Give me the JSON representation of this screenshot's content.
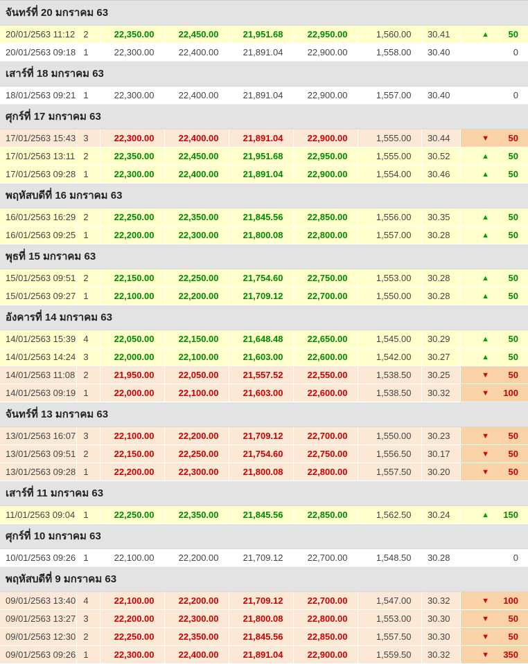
{
  "colors": {
    "up_text": "#008a00",
    "up_row_bg": "#ffffcc",
    "down_text": "#cc0000",
    "down_row_bg": "#fbe8d5",
    "down_change_bg": "#f9d2a7",
    "group_header_bg": "#e3e3e3",
    "neutral_text": "#444444"
  },
  "icons": {
    "up_arrow": "▲",
    "down_arrow": "▼"
  },
  "groups": [
    {
      "date_label": "จันทร์ที่ 20 มกราคม 63",
      "rows": [
        {
          "datetime": "20/01/2563 11:12",
          "seq": "2",
          "bullion_buy": "22,350.00",
          "bullion_sell": "22,450.00",
          "ornament_buy": "21,951.68",
          "ornament_sell": "22,950.00",
          "gold_spot": "1,560.00",
          "exchange_rate": "30.41",
          "change": "50",
          "direction": "up"
        },
        {
          "datetime": "20/01/2563 09:18",
          "seq": "1",
          "bullion_buy": "22,300.00",
          "bullion_sell": "22,400.00",
          "ornament_buy": "21,891.04",
          "ornament_sell": "22,900.00",
          "gold_spot": "1,558.00",
          "exchange_rate": "30.40",
          "change": "0",
          "direction": "none"
        }
      ]
    },
    {
      "date_label": "เสาร์ที่ 18 มกราคม 63",
      "rows": [
        {
          "datetime": "18/01/2563 09:21",
          "seq": "1",
          "bullion_buy": "22,300.00",
          "bullion_sell": "22,400.00",
          "ornament_buy": "21,891.04",
          "ornament_sell": "22,900.00",
          "gold_spot": "1,557.00",
          "exchange_rate": "30.40",
          "change": "0",
          "direction": "none"
        }
      ]
    },
    {
      "date_label": "ศุกร์ที่ 17 มกราคม 63",
      "rows": [
        {
          "datetime": "17/01/2563 15:43",
          "seq": "3",
          "bullion_buy": "22,300.00",
          "bullion_sell": "22,400.00",
          "ornament_buy": "21,891.04",
          "ornament_sell": "22,900.00",
          "gold_spot": "1,555.00",
          "exchange_rate": "30.44",
          "change": "50",
          "direction": "down"
        },
        {
          "datetime": "17/01/2563 13:11",
          "seq": "2",
          "bullion_buy": "22,350.00",
          "bullion_sell": "22,450.00",
          "ornament_buy": "21,951.68",
          "ornament_sell": "22,950.00",
          "gold_spot": "1,555.00",
          "exchange_rate": "30.52",
          "change": "50",
          "direction": "up"
        },
        {
          "datetime": "17/01/2563 09:28",
          "seq": "1",
          "bullion_buy": "22,300.00",
          "bullion_sell": "22,400.00",
          "ornament_buy": "21,891.04",
          "ornament_sell": "22,900.00",
          "gold_spot": "1,554.00",
          "exchange_rate": "30.46",
          "change": "50",
          "direction": "up"
        }
      ]
    },
    {
      "date_label": "พฤหัสบดีที่ 16 มกราคม 63",
      "rows": [
        {
          "datetime": "16/01/2563 16:29",
          "seq": "2",
          "bullion_buy": "22,250.00",
          "bullion_sell": "22,350.00",
          "ornament_buy": "21,845.56",
          "ornament_sell": "22,850.00",
          "gold_spot": "1,556.00",
          "exchange_rate": "30.35",
          "change": "50",
          "direction": "up"
        },
        {
          "datetime": "16/01/2563 09:25",
          "seq": "1",
          "bullion_buy": "22,200.00",
          "bullion_sell": "22,300.00",
          "ornament_buy": "21,800.08",
          "ornament_sell": "22,800.00",
          "gold_spot": "1,557.00",
          "exchange_rate": "30.28",
          "change": "50",
          "direction": "up"
        }
      ]
    },
    {
      "date_label": "พุธที่ 15 มกราคม 63",
      "rows": [
        {
          "datetime": "15/01/2563 09:51",
          "seq": "2",
          "bullion_buy": "22,150.00",
          "bullion_sell": "22,250.00",
          "ornament_buy": "21,754.60",
          "ornament_sell": "22,750.00",
          "gold_spot": "1,553.00",
          "exchange_rate": "30.28",
          "change": "50",
          "direction": "up"
        },
        {
          "datetime": "15/01/2563 09:27",
          "seq": "1",
          "bullion_buy": "22,100.00",
          "bullion_sell": "22,200.00",
          "ornament_buy": "21,709.12",
          "ornament_sell": "22,700.00",
          "gold_spot": "1,550.00",
          "exchange_rate": "30.28",
          "change": "50",
          "direction": "up"
        }
      ]
    },
    {
      "date_label": "อังคารที่ 14 มกราคม 63",
      "rows": [
        {
          "datetime": "14/01/2563 15:39",
          "seq": "4",
          "bullion_buy": "22,050.00",
          "bullion_sell": "22,150.00",
          "ornament_buy": "21,648.48",
          "ornament_sell": "22,650.00",
          "gold_spot": "1,545.00",
          "exchange_rate": "30.29",
          "change": "50",
          "direction": "up"
        },
        {
          "datetime": "14/01/2563 14:24",
          "seq": "3",
          "bullion_buy": "22,000.00",
          "bullion_sell": "22,100.00",
          "ornament_buy": "21,603.00",
          "ornament_sell": "22,600.00",
          "gold_spot": "1,542.00",
          "exchange_rate": "30.27",
          "change": "50",
          "direction": "up"
        },
        {
          "datetime": "14/01/2563 11:08",
          "seq": "2",
          "bullion_buy": "21,950.00",
          "bullion_sell": "22,050.00",
          "ornament_buy": "21,557.52",
          "ornament_sell": "22,550.00",
          "gold_spot": "1,538.50",
          "exchange_rate": "30.25",
          "change": "50",
          "direction": "down"
        },
        {
          "datetime": "14/01/2563 09:19",
          "seq": "1",
          "bullion_buy": "22,000.00",
          "bullion_sell": "22,100.00",
          "ornament_buy": "21,603.00",
          "ornament_sell": "22,600.00",
          "gold_spot": "1,538.50",
          "exchange_rate": "30.32",
          "change": "100",
          "direction": "down"
        }
      ]
    },
    {
      "date_label": "จันทร์ที่ 13 มกราคม 63",
      "rows": [
        {
          "datetime": "13/01/2563 16:07",
          "seq": "3",
          "bullion_buy": "22,100.00",
          "bullion_sell": "22,200.00",
          "ornament_buy": "21,709.12",
          "ornament_sell": "22,700.00",
          "gold_spot": "1,550.00",
          "exchange_rate": "30.23",
          "change": "50",
          "direction": "down"
        },
        {
          "datetime": "13/01/2563 09:51",
          "seq": "2",
          "bullion_buy": "22,150.00",
          "bullion_sell": "22,250.00",
          "ornament_buy": "21,754.60",
          "ornament_sell": "22,750.00",
          "gold_spot": "1,556.50",
          "exchange_rate": "30.17",
          "change": "50",
          "direction": "down"
        },
        {
          "datetime": "13/01/2563 09:28",
          "seq": "1",
          "bullion_buy": "22,200.00",
          "bullion_sell": "22,300.00",
          "ornament_buy": "21,800.08",
          "ornament_sell": "22,800.00",
          "gold_spot": "1,557.50",
          "exchange_rate": "30.20",
          "change": "50",
          "direction": "down"
        }
      ]
    },
    {
      "date_label": "เสาร์ที่ 11 มกราคม 63",
      "rows": [
        {
          "datetime": "11/01/2563 09:04",
          "seq": "1",
          "bullion_buy": "22,250.00",
          "bullion_sell": "22,350.00",
          "ornament_buy": "21,845.56",
          "ornament_sell": "22,850.00",
          "gold_spot": "1,562.50",
          "exchange_rate": "30.24",
          "change": "150",
          "direction": "up"
        }
      ]
    },
    {
      "date_label": "ศุกร์ที่ 10 มกราคม 63",
      "rows": [
        {
          "datetime": "10/01/2563 09:26",
          "seq": "1",
          "bullion_buy": "22,100.00",
          "bullion_sell": "22,200.00",
          "ornament_buy": "21,709.12",
          "ornament_sell": "22,700.00",
          "gold_spot": "1,548.50",
          "exchange_rate": "30.28",
          "change": "0",
          "direction": "none"
        }
      ]
    },
    {
      "date_label": "พฤหัสบดีที่ 9 มกราคม 63",
      "rows": [
        {
          "datetime": "09/01/2563 13:40",
          "seq": "4",
          "bullion_buy": "22,100.00",
          "bullion_sell": "22,200.00",
          "ornament_buy": "21,709.12",
          "ornament_sell": "22,700.00",
          "gold_spot": "1,547.00",
          "exchange_rate": "30.32",
          "change": "100",
          "direction": "down"
        },
        {
          "datetime": "09/01/2563 13:27",
          "seq": "3",
          "bullion_buy": "22,200.00",
          "bullion_sell": "22,300.00",
          "ornament_buy": "21,800.08",
          "ornament_sell": "22,800.00",
          "gold_spot": "1,553.00",
          "exchange_rate": "30.30",
          "change": "50",
          "direction": "down"
        },
        {
          "datetime": "09/01/2563 12:30",
          "seq": "2",
          "bullion_buy": "22,250.00",
          "bullion_sell": "22,350.00",
          "ornament_buy": "21,845.56",
          "ornament_sell": "22,850.00",
          "gold_spot": "1,557.50",
          "exchange_rate": "30.30",
          "change": "50",
          "direction": "down"
        },
        {
          "datetime": "09/01/2563 09:26",
          "seq": "1",
          "bullion_buy": "22,300.00",
          "bullion_sell": "22,400.00",
          "ornament_buy": "21,891.04",
          "ornament_sell": "22,900.00",
          "gold_spot": "1,559.50",
          "exchange_rate": "30.32",
          "change": "350",
          "direction": "down"
        }
      ]
    }
  ]
}
